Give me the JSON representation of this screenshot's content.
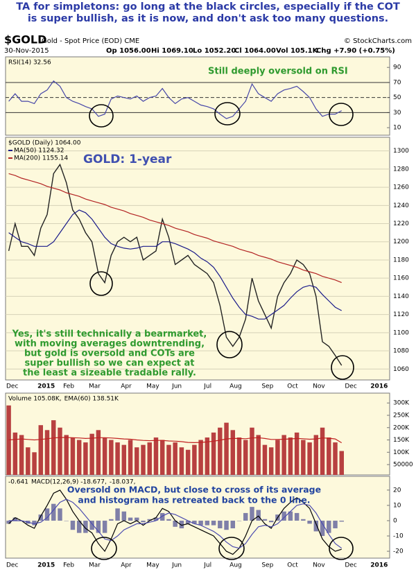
{
  "header": {
    "note": [
      "TA for simpletons: go long at the black circles, especially if the COT",
      "is super bullish, as it is now, and don't ask too many questions."
    ],
    "symbol": "$GOLD",
    "description": "Gold - Spot Price (EOD) CME",
    "source": "© StockCharts.com",
    "date": "30-Nov-2015",
    "quote": [
      "Op 1056.00",
      "Hi 1069.10",
      "Lo 1052.20",
      "Cl 1064.00",
      "Vol 105.1K",
      "Chg +7.90 (+0.75%)"
    ]
  },
  "chart_data": [
    {
      "type": "line",
      "annotation": "Still deeply oversold on RSI",
      "ylim": [
        0,
        104
      ],
      "yticks": [
        10,
        30,
        50,
        70,
        90
      ],
      "reference_lines": [
        30,
        50,
        70
      ],
      "series": [
        {
          "name": "RSI(14) 32.56",
          "color": "#4646a8",
          "values": [
            45,
            55,
            45,
            45,
            42,
            55,
            60,
            72,
            65,
            50,
            45,
            42,
            38,
            35,
            25,
            28,
            48,
            52,
            50,
            48,
            52,
            45,
            50,
            52,
            62,
            50,
            42,
            48,
            50,
            45,
            40,
            38,
            35,
            28,
            22,
            25,
            35,
            45,
            68,
            55,
            50,
            45,
            55,
            60,
            62,
            65,
            58,
            50,
            35,
            25,
            28,
            28,
            32.56,
            null,
            null,
            null,
            null,
            null,
            null,
            null
          ]
        }
      ]
    },
    {
      "type": "line",
      "title": "GOLD: 1-year",
      "annotation": [
        "Yes, it's still technically a bearmarket,",
        "with moving averages downtrending,",
        "but gold is oversold and COTs are",
        "super bullish so we can expect at",
        "the least a sizeable tradable rally."
      ],
      "categories": [
        "Dec",
        null,
        null,
        null,
        null,
        "2015",
        null,
        null,
        null,
        "Feb",
        null,
        null,
        null,
        "Mar",
        null,
        null,
        null,
        null,
        "Apr",
        null,
        null,
        null,
        "May",
        null,
        null,
        null,
        "Jun",
        null,
        null,
        null,
        null,
        "Jul",
        null,
        null,
        null,
        "Aug",
        null,
        null,
        null,
        null,
        "Sep",
        null,
        null,
        null,
        "Oct",
        null,
        null,
        null,
        "Nov",
        null,
        null,
        null,
        null,
        "Dec",
        null,
        null,
        null,
        "2016",
        null,
        null
      ],
      "ylim": [
        1048,
        1315
      ],
      "yticks": [
        1060,
        1080,
        1100,
        1120,
        1140,
        1160,
        1180,
        1200,
        1220,
        1240,
        1260,
        1280,
        1300
      ],
      "grid": true,
      "series": [
        {
          "name": "$GOLD (Daily) 1064.00",
          "color": "#222222",
          "values": [
            1190,
            1220,
            1195,
            1195,
            1185,
            1215,
            1230,
            1275,
            1285,
            1265,
            1235,
            1225,
            1210,
            1200,
            1165,
            1155,
            1185,
            1200,
            1205,
            1200,
            1205,
            1180,
            1185,
            1190,
            1225,
            1205,
            1175,
            1180,
            1185,
            1175,
            1170,
            1165,
            1155,
            1130,
            1095,
            1085,
            1095,
            1115,
            1160,
            1135,
            1120,
            1105,
            1140,
            1155,
            1165,
            1180,
            1175,
            1165,
            1140,
            1090,
            1085,
            1075,
            1064,
            null,
            null,
            null,
            null,
            null,
            null,
            null
          ]
        },
        {
          "name": "MA(50) 1124.32",
          "color": "#1a1a8a",
          "values": [
            1210,
            1205,
            1200,
            1198,
            1195,
            1195,
            1195,
            1200,
            1210,
            1220,
            1230,
            1235,
            1232,
            1225,
            1215,
            1205,
            1198,
            1195,
            1193,
            1192,
            1193,
            1195,
            1195,
            1195,
            1200,
            1200,
            1198,
            1195,
            1192,
            1188,
            1182,
            1178,
            1172,
            1162,
            1150,
            1138,
            1128,
            1120,
            1118,
            1115,
            1115,
            1120,
            1125,
            1130,
            1138,
            1145,
            1150,
            1152,
            1150,
            1142,
            1135,
            1128,
            1124.32,
            null,
            null,
            null,
            null,
            null,
            null,
            null
          ]
        },
        {
          "name": "MA(200) 1155.14",
          "color": "#b22222",
          "values": [
            1275,
            1273,
            1270,
            1268,
            1266,
            1264,
            1261,
            1259,
            1257,
            1254,
            1252,
            1250,
            1247,
            1245,
            1243,
            1241,
            1238,
            1236,
            1234,
            1231,
            1229,
            1227,
            1224,
            1222,
            1220,
            1218,
            1215,
            1213,
            1211,
            1208,
            1206,
            1204,
            1201,
            1199,
            1197,
            1195,
            1192,
            1190,
            1188,
            1185,
            1183,
            1181,
            1178,
            1176,
            1174,
            1172,
            1169,
            1167,
            1165,
            1162,
            1160,
            1158,
            1155.14,
            null,
            null,
            null,
            null,
            null,
            null,
            null
          ]
        }
      ]
    },
    {
      "type": "bar",
      "ylim": [
        8000,
        340000
      ],
      "yticks": [
        {
          "value": 300000,
          "label": "300K"
        },
        {
          "value": 250000,
          "label": "250K"
        },
        {
          "value": 200000,
          "label": "200K"
        },
        {
          "value": 150000,
          "label": "150K"
        },
        {
          "value": 100000,
          "label": "100K"
        },
        50000
      ],
      "series": [
        {
          "name": "Volume 105.08K,",
          "color": "#b84040",
          "style": "bar",
          "values": [
            290000,
            180000,
            170000,
            120000,
            100000,
            210000,
            190000,
            230000,
            200000,
            170000,
            160000,
            150000,
            140000,
            175000,
            190000,
            160000,
            150000,
            140000,
            130000,
            150000,
            120000,
            130000,
            140000,
            160000,
            150000,
            130000,
            140000,
            120000,
            110000,
            130000,
            150000,
            160000,
            180000,
            200000,
            220000,
            190000,
            160000,
            150000,
            200000,
            170000,
            130000,
            120000,
            150000,
            170000,
            160000,
            180000,
            150000,
            140000,
            170000,
            200000,
            160000,
            140000,
            105080,
            null,
            null,
            null,
            null,
            null,
            null,
            null
          ]
        },
        {
          "name": "EMA(60) 138.51K",
          "color": "#c02020",
          "style": "line",
          "values": [
            150000,
            152000,
            154000,
            152000,
            150000,
            152000,
            155000,
            158000,
            160000,
            160000,
            159000,
            158000,
            156000,
            157000,
            159000,
            159000,
            158000,
            156000,
            154000,
            153000,
            150000,
            148000,
            147000,
            148000,
            148000,
            146000,
            145000,
            143000,
            140000,
            139000,
            140000,
            142000,
            145000,
            149000,
            154000,
            156000,
            156000,
            155000,
            158000,
            159000,
            156000,
            152000,
            152000,
            153000,
            154000,
            156000,
            155000,
            153000,
            154000,
            158000,
            157000,
            154000,
            138510,
            null,
            null,
            null,
            null,
            null,
            null,
            null
          ]
        }
      ]
    },
    {
      "type": "line",
      "annotation": [
        "Oversold on MACD, but close to cross of its average",
        "and histogram has retreated back to the 0 line."
      ],
      "ylim": [
        -24.5,
        29
      ],
      "yticks": [
        20,
        10,
        0,
        -10,
        -20
      ],
      "series": [
        {
          "name": "-0.641",
          "color": "#7f7fa8",
          "style": "bar",
          "values": [
            -2,
            2,
            0,
            -2,
            -3,
            4,
            8,
            11,
            8,
            0,
            -6,
            -8,
            -8,
            -6,
            -8,
            -8,
            1,
            8,
            6,
            2,
            2,
            -1,
            1,
            2,
            5,
            1,
            -4,
            -5,
            -2,
            -2,
            -3,
            -3,
            -3,
            -5,
            -6,
            -5,
            0,
            5,
            9,
            7,
            1,
            -1,
            4,
            6,
            6,
            5,
            1,
            -2,
            -7,
            -10,
            -8,
            -5,
            -0.641,
            null,
            null,
            null,
            null,
            null,
            null,
            null
          ]
        },
        {
          "name": "MACD(12,26,9) -18.677,",
          "color": "#000000",
          "style": "line",
          "values": [
            -2,
            2,
            0,
            -3,
            -5,
            3,
            10,
            18,
            20,
            14,
            6,
            0,
            -5,
            -8,
            -15,
            -20,
            -12,
            -2,
            0,
            -2,
            0,
            -3,
            0,
            2,
            8,
            6,
            0,
            -3,
            -2,
            -4,
            -6,
            -8,
            -10,
            -15,
            -20,
            -22,
            -18,
            -10,
            0,
            3,
            -2,
            -5,
            2,
            8,
            12,
            15,
            12,
            8,
            -2,
            -12,
            -17,
            -20,
            -18.677,
            null,
            null,
            null,
            null,
            null,
            null,
            null
          ]
        },
        {
          "name": "-18.037,",
          "color": "#4b4bb0",
          "style": "line",
          "values": [
            0,
            0,
            0,
            -1,
            -2,
            -1,
            2,
            7,
            12,
            14,
            12,
            8,
            3,
            -2,
            -7,
            -12,
            -13,
            -10,
            -6,
            -4,
            -2,
            -2,
            -1,
            0,
            3,
            5,
            4,
            2,
            0,
            -2,
            -3,
            -5,
            -7,
            -10,
            -14,
            -17,
            -18,
            -15,
            -9,
            -4,
            -3,
            -4,
            -2,
            2,
            6,
            10,
            11,
            10,
            5,
            -2,
            -9,
            -15,
            -18.037,
            null,
            null,
            null,
            null,
            null,
            null,
            null
          ]
        }
      ]
    }
  ]
}
